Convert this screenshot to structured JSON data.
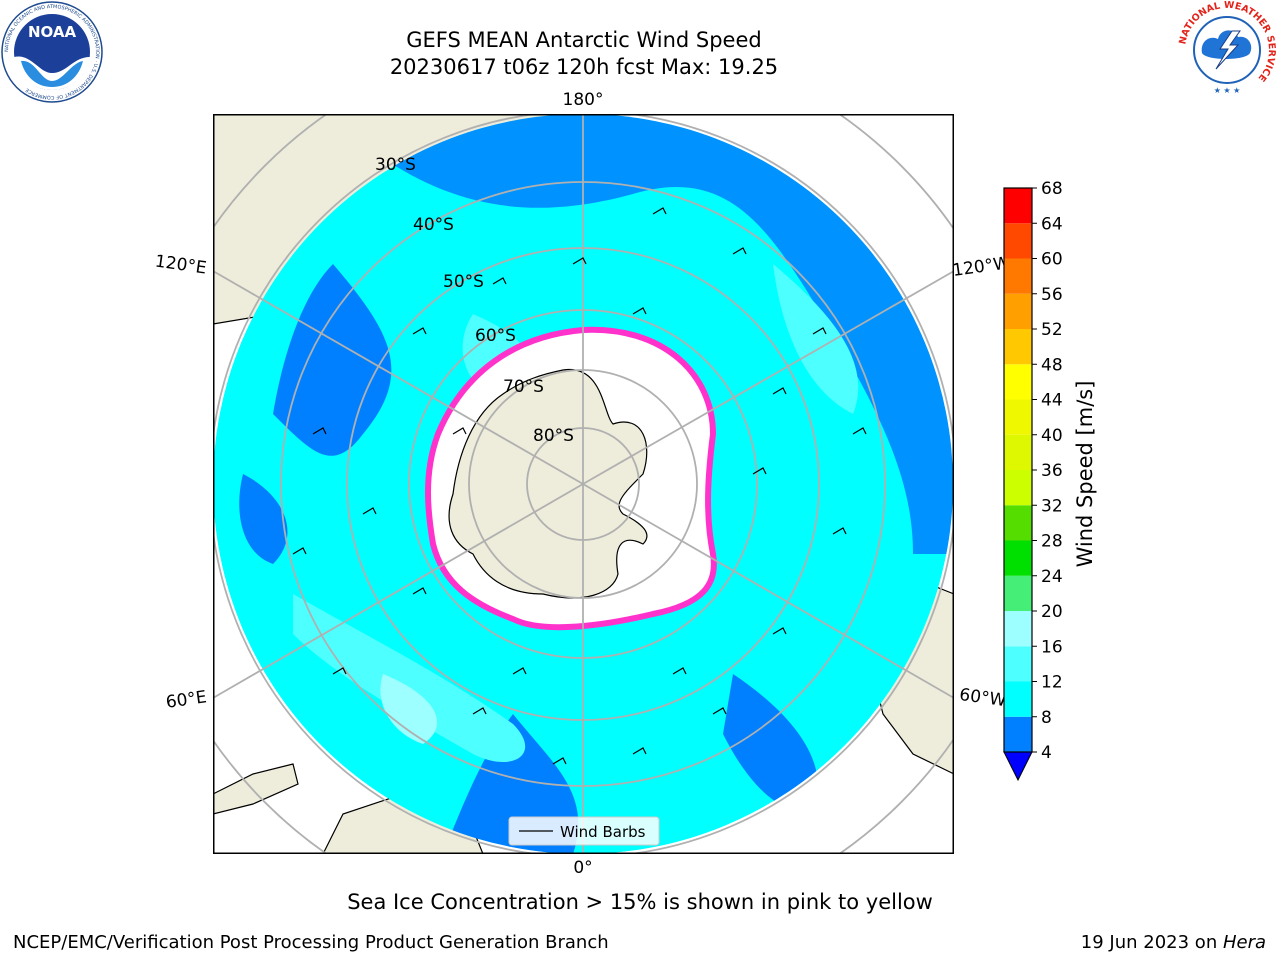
{
  "header": {
    "title_line1": "GEFS MEAN Antarctic Wind Speed",
    "title_line2": "20230617 t06z 120h fcst   Max: 19.25"
  },
  "logos": {
    "left": {
      "name": "noaa-logo",
      "text": "NOAA",
      "ring_text": "NATIONAL OCEANIC AND ATMOSPHERIC ADMINISTRATION · U.S. DEPARTMENT OF COMMERCE"
    },
    "right": {
      "name": "nws-logo",
      "ring_text": "NATIONAL WEATHER SERVICE"
    }
  },
  "map": {
    "projection": "south-polar-stereographic",
    "longitude_labels": {
      "top": "180°",
      "bottom": "0°",
      "left_upper": "120°E",
      "left_lower": "60°E",
      "right_upper": "120°W",
      "right_lower": "60°W"
    },
    "latitude_labels": [
      "30°S",
      "40°S",
      "50°S",
      "60°S",
      "70°S",
      "80°S"
    ],
    "legend_label": "Wind Barbs",
    "colors": {
      "land": "#eeecda",
      "ice_edge": "#ff33cc",
      "grid": "#b0b0b0",
      "coast": "#000000"
    }
  },
  "chart_data": {
    "type": "heatmap",
    "title": "GEFS MEAN Antarctic Wind Speed",
    "subtitle": "20230617 t06z 120h fcst   Max: 19.25",
    "max_value": 19.25,
    "colorbar": {
      "label": "Wind Speed [m/s]",
      "ticks": [
        4,
        8,
        12,
        16,
        20,
        24,
        28,
        32,
        36,
        40,
        44,
        48,
        52,
        56,
        60,
        64,
        68
      ],
      "tick_labels": [
        "4",
        "8",
        "12",
        "16",
        "20",
        "24",
        "28",
        "32",
        "36",
        "40",
        "44",
        "48",
        "52",
        "56",
        "60",
        "64",
        "68"
      ],
      "bins": [
        {
          "from": 4,
          "to": 8,
          "color": "#0080ff"
        },
        {
          "from": 8,
          "to": 12,
          "color": "#00ffff"
        },
        {
          "from": 12,
          "to": 16,
          "color": "#4dffff"
        },
        {
          "from": 16,
          "to": 20,
          "color": "#9dffff"
        },
        {
          "from": 20,
          "to": 24,
          "color": "#44ee77"
        },
        {
          "from": 24,
          "to": 28,
          "color": "#00e000"
        },
        {
          "from": 28,
          "to": 32,
          "color": "#55dd00"
        },
        {
          "from": 32,
          "to": 36,
          "color": "#ccff00"
        },
        {
          "from": 36,
          "to": 40,
          "color": "#ddf800"
        },
        {
          "from": 40,
          "to": 44,
          "color": "#f0f800"
        },
        {
          "from": 44,
          "to": 48,
          "color": "#ffff00"
        },
        {
          "from": 48,
          "to": 52,
          "color": "#ffc800"
        },
        {
          "from": 52,
          "to": 56,
          "color": "#ffa000"
        },
        {
          "from": 56,
          "to": 60,
          "color": "#ff7800"
        },
        {
          "from": 60,
          "to": 64,
          "color": "#ff4800"
        },
        {
          "from": 64,
          "to": 68,
          "color": "#ff0000"
        }
      ],
      "under_color": "#0000ff"
    }
  },
  "footer": {
    "note": "Sea Ice Concentration > 15% is shown in pink to yellow",
    "left": "NCEP/EMC/Verification Post Processing Product Generation Branch",
    "right_prefix": "19 Jun 2023 on ",
    "right_host": "Hera"
  }
}
